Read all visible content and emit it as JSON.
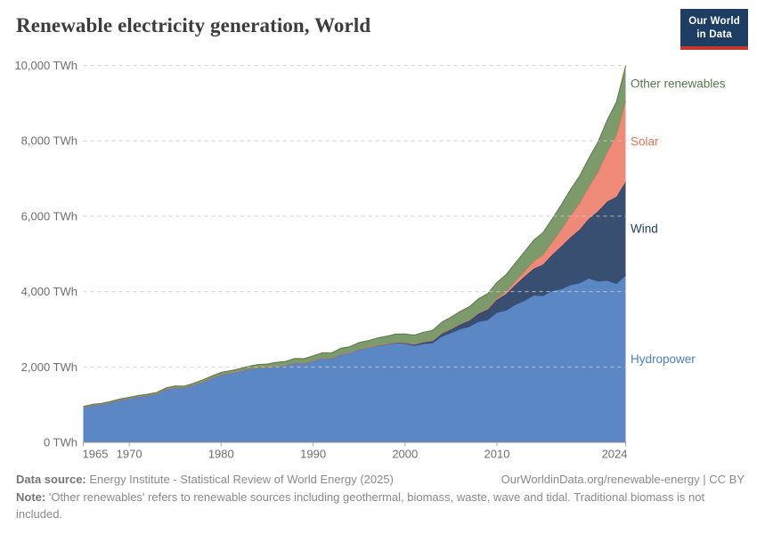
{
  "header": {
    "title": "Renewable electricity generation, World",
    "logo": {
      "line1": "Our World",
      "line2": "in Data"
    }
  },
  "chart_data": {
    "type": "area",
    "stacked": true,
    "title": "Renewable electricity generation, World",
    "unit": "TWh",
    "xlim": [
      1965,
      2024
    ],
    "ylim": [
      0,
      10000
    ],
    "grid": "dashed-horizontal",
    "legend_position": "right-edge-labels",
    "x": [
      1965,
      1966,
      1967,
      1968,
      1969,
      1970,
      1971,
      1972,
      1973,
      1974,
      1975,
      1976,
      1977,
      1978,
      1979,
      1980,
      1981,
      1982,
      1983,
      1984,
      1985,
      1986,
      1987,
      1988,
      1989,
      1990,
      1991,
      1992,
      1993,
      1994,
      1995,
      1996,
      1997,
      1998,
      1999,
      2000,
      2001,
      2002,
      2003,
      2004,
      2005,
      2006,
      2007,
      2008,
      2009,
      2010,
      2011,
      2012,
      2013,
      2014,
      2015,
      2016,
      2017,
      2018,
      2019,
      2020,
      2021,
      2022,
      2023,
      2024
    ],
    "x_ticks": [
      1965,
      1970,
      1980,
      1990,
      2000,
      2010,
      2024
    ],
    "y_ticks": [
      {
        "value": 0,
        "label": "0 TWh"
      },
      {
        "value": 2000,
        "label": "2,000 TWh"
      },
      {
        "value": 4000,
        "label": "4,000 TWh"
      },
      {
        "value": 6000,
        "label": "6,000 TWh"
      },
      {
        "value": 8000,
        "label": "8,000 TWh"
      },
      {
        "value": 10000,
        "label": "10,000 TWh"
      }
    ],
    "series": [
      {
        "name": "Hydropower",
        "fill": "#5b87c4",
        "stroke": "#4a7dc4",
        "label_color": "#4c80c8",
        "values": [
          926,
          980,
          1008,
          1059,
          1123,
          1160,
          1209,
          1241,
          1284,
          1403,
          1452,
          1444,
          1518,
          1603,
          1702,
          1794,
          1835,
          1879,
          1941,
          1977,
          1982,
          2021,
          2037,
          2110,
          2093,
          2159,
          2232,
          2216,
          2330,
          2365,
          2462,
          2501,
          2560,
          2591,
          2634,
          2613,
          2561,
          2609,
          2631,
          2806,
          2899,
          3000,
          3065,
          3197,
          3245,
          3437,
          3494,
          3646,
          3755,
          3896,
          3879,
          4014,
          4060,
          4171,
          4222,
          4347,
          4267,
          4289,
          4204,
          4418
        ]
      },
      {
        "name": "Wind",
        "fill": "#384f71",
        "stroke": "#1d3d63",
        "label_color": "#1d3d63",
        "values": [
          0,
          0,
          0,
          0,
          0,
          0,
          0,
          0,
          0,
          0,
          0,
          0,
          0,
          0,
          0,
          0,
          0,
          0,
          0,
          0,
          1,
          1,
          2,
          2,
          3,
          4,
          4,
          5,
          6,
          7,
          8,
          9,
          12,
          16,
          21,
          31,
          38,
          52,
          63,
          85,
          104,
          133,
          171,
          221,
          276,
          346,
          437,
          526,
          646,
          712,
          831,
          958,
          1136,
          1270,
          1421,
          1586,
          1862,
          2098,
          2310,
          2494
        ]
      },
      {
        "name": "Solar",
        "fill": "#ee8a77",
        "stroke": "#e8705a",
        "label_color": "#e8705a",
        "values": [
          0,
          0,
          0,
          0,
          0,
          0,
          0,
          0,
          0,
          0,
          0,
          0,
          0,
          0,
          0,
          0,
          0,
          0,
          0,
          0,
          0,
          0,
          0,
          0,
          0,
          0,
          0,
          0,
          0,
          0,
          0,
          0,
          0,
          0,
          0,
          1,
          1,
          2,
          2,
          3,
          4,
          5,
          7,
          12,
          20,
          32,
          63,
          97,
          132,
          197,
          256,
          328,
          444,
          574,
          703,
          846,
          1040,
          1320,
          1629,
          2131
        ]
      },
      {
        "name": "Other renewables",
        "fill": "#7d9a6a",
        "stroke": "#55784c",
        "label_color": "#55784c",
        "values": [
          25,
          26,
          27,
          28,
          30,
          32,
          34,
          36,
          38,
          41,
          44,
          47,
          50,
          54,
          58,
          62,
          67,
          72,
          78,
          86,
          95,
          101,
          108,
          115,
          123,
          132,
          140,
          148,
          157,
          166,
          176,
          186,
          197,
          208,
          220,
          232,
          244,
          258,
          272,
          293,
          315,
          335,
          356,
          379,
          403,
          428,
          458,
          490,
          524,
          560,
          595,
          625,
          657,
          690,
          724,
          760,
          800,
          845,
          890,
          945
        ]
      }
    ]
  },
  "footer": {
    "datasource_label": "Data source:",
    "datasource_text": "Energy Institute - Statistical Review of World Energy (2025)",
    "attribution": "OurWorldinData.org/renewable-energy | CC BY",
    "note_label": "Note:",
    "note_text": "'Other renewables' refers to renewable sources including geothermal, biomass, waste, wave and tidal. Traditional biomass is not included."
  }
}
